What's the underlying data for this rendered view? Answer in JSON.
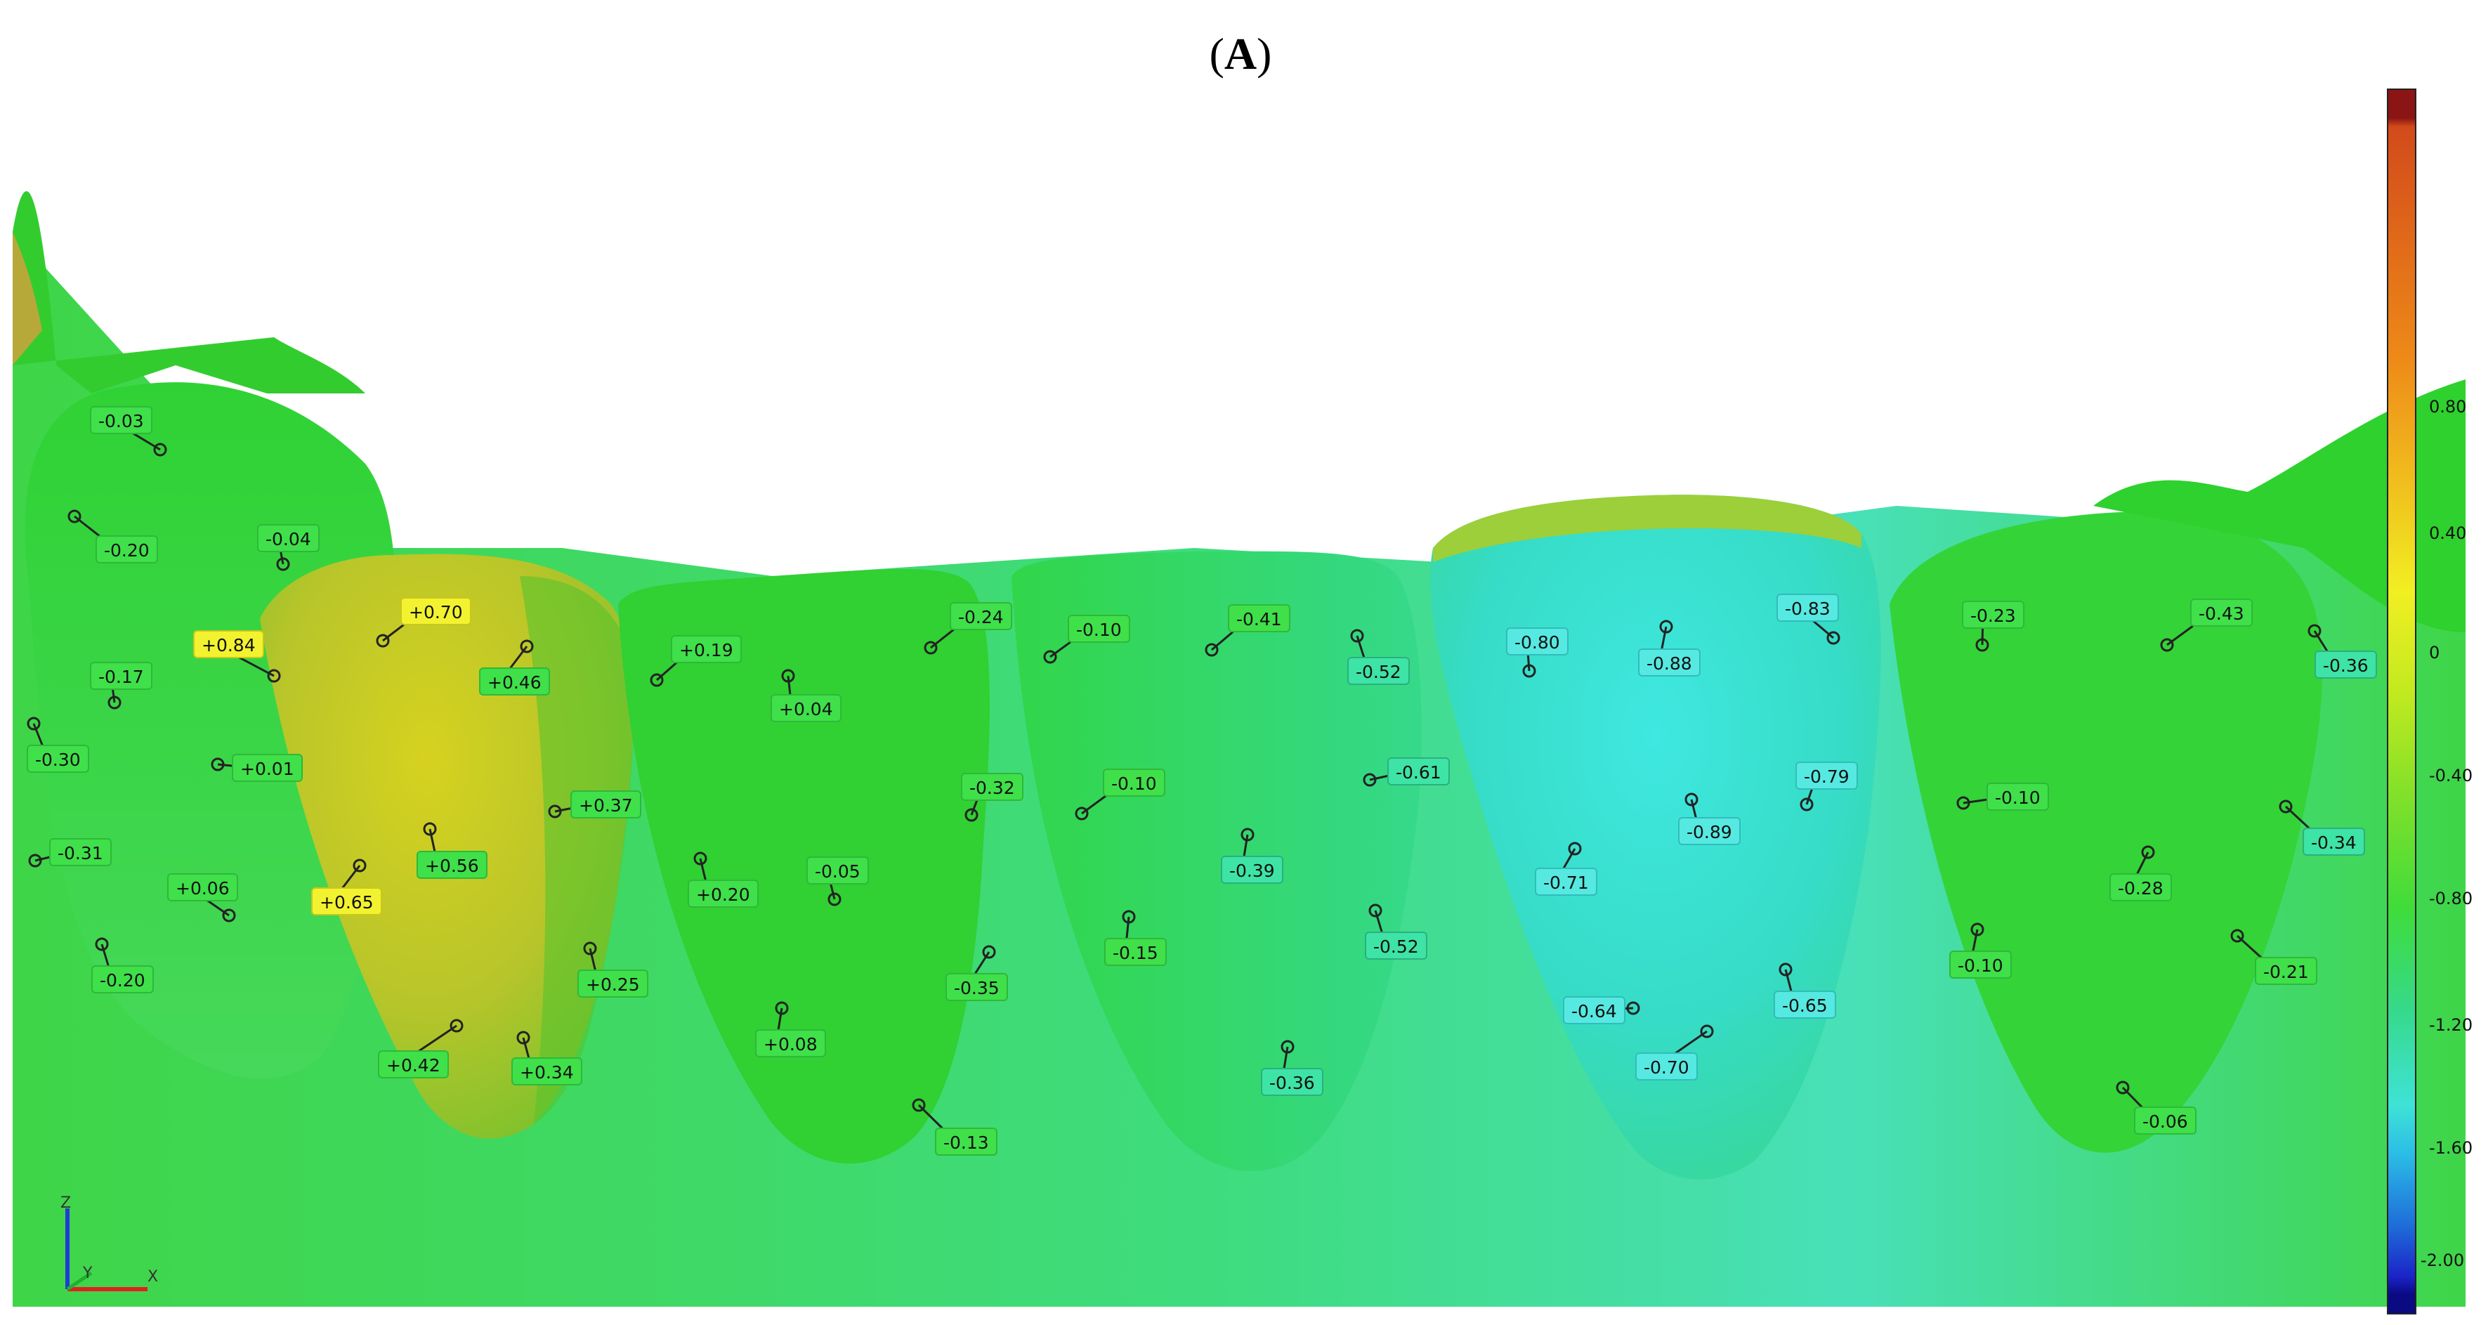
{
  "figure": {
    "panel_label": "A"
  },
  "colorbar": {
    "ticks": [
      "0.80",
      "0.40",
      "0",
      "-0.40",
      "-0.80",
      "-1.20",
      "-1.60",
      "-2.00"
    ]
  },
  "axes_triad": {
    "z": "Z",
    "y": "Y",
    "x": "X"
  },
  "measurements": [
    {
      "id": "m1",
      "text": "-0.03",
      "color": "green"
    },
    {
      "id": "m2",
      "text": "-0.20",
      "color": "green"
    },
    {
      "id": "m3",
      "text": "-0.04",
      "color": "green"
    },
    {
      "id": "m4",
      "text": "+0.84",
      "color": "yellow"
    },
    {
      "id": "m5",
      "text": "+0.70",
      "color": "yellow"
    },
    {
      "id": "m6",
      "text": "+0.46",
      "color": "green"
    },
    {
      "id": "m7",
      "text": "-0.17",
      "color": "green"
    },
    {
      "id": "m8",
      "text": "-0.30",
      "color": "green"
    },
    {
      "id": "m9",
      "text": "+0.01",
      "color": "green"
    },
    {
      "id": "m10",
      "text": "-0.31",
      "color": "green"
    },
    {
      "id": "m11",
      "text": "+0.06",
      "color": "green"
    },
    {
      "id": "m12",
      "text": "+0.65",
      "color": "yellow"
    },
    {
      "id": "m13",
      "text": "+0.56",
      "color": "green"
    },
    {
      "id": "m14",
      "text": "+0.37",
      "color": "green"
    },
    {
      "id": "m15",
      "text": "-0.20",
      "color": "green"
    },
    {
      "id": "m16",
      "text": "+0.25",
      "color": "green"
    },
    {
      "id": "m17",
      "text": "+0.42",
      "color": "green"
    },
    {
      "id": "m18",
      "text": "+0.34",
      "color": "green"
    },
    {
      "id": "m19",
      "text": "+0.19",
      "color": "green"
    },
    {
      "id": "m20",
      "text": "+0.04",
      "color": "green"
    },
    {
      "id": "m21",
      "text": "+0.20",
      "color": "green"
    },
    {
      "id": "m22",
      "text": "-0.05",
      "color": "green"
    },
    {
      "id": "m23",
      "text": "+0.08",
      "color": "green"
    },
    {
      "id": "m24",
      "text": "-0.24",
      "color": "green"
    },
    {
      "id": "m25",
      "text": "-0.32",
      "color": "green"
    },
    {
      "id": "m26",
      "text": "-0.35",
      "color": "green"
    },
    {
      "id": "m27",
      "text": "-0.13",
      "color": "green"
    },
    {
      "id": "m28",
      "text": "-0.10",
      "color": "green"
    },
    {
      "id": "m29",
      "text": "-0.10",
      "color": "green"
    },
    {
      "id": "m30",
      "text": "-0.15",
      "color": "green"
    },
    {
      "id": "m31",
      "text": "-0.41",
      "color": "green"
    },
    {
      "id": "m32",
      "text": "-0.39",
      "color": "teal"
    },
    {
      "id": "m33",
      "text": "-0.36",
      "color": "teal"
    },
    {
      "id": "m34",
      "text": "-0.52",
      "color": "teal"
    },
    {
      "id": "m35",
      "text": "-0.61",
      "color": "teal"
    },
    {
      "id": "m36",
      "text": "-0.52",
      "color": "teal"
    },
    {
      "id": "m37",
      "text": "-0.80",
      "color": "cyan"
    },
    {
      "id": "m38",
      "text": "-0.88",
      "color": "cyan"
    },
    {
      "id": "m39",
      "text": "-0.83",
      "color": "cyan"
    },
    {
      "id": "m40",
      "text": "-0.79",
      "color": "cyan"
    },
    {
      "id": "m41",
      "text": "-0.89",
      "color": "cyan"
    },
    {
      "id": "m42",
      "text": "-0.71",
      "color": "cyan"
    },
    {
      "id": "m43",
      "text": "-0.64",
      "color": "cyan"
    },
    {
      "id": "m44",
      "text": "-0.65",
      "color": "cyan"
    },
    {
      "id": "m45",
      "text": "-0.70",
      "color": "cyan"
    },
    {
      "id": "m46",
      "text": "-0.23",
      "color": "green"
    },
    {
      "id": "m47",
      "text": "-0.43",
      "color": "green"
    },
    {
      "id": "m48",
      "text": "-0.36",
      "color": "teal"
    },
    {
      "id": "m49",
      "text": "-0.10",
      "color": "green"
    },
    {
      "id": "m50",
      "text": "-0.34",
      "color": "teal"
    },
    {
      "id": "m51",
      "text": "-0.28",
      "color": "green"
    },
    {
      "id": "m52",
      "text": "-0.10",
      "color": "green"
    },
    {
      "id": "m53",
      "text": "-0.21",
      "color": "green"
    },
    {
      "id": "m54",
      "text": "-0.06",
      "color": "green"
    }
  ]
}
